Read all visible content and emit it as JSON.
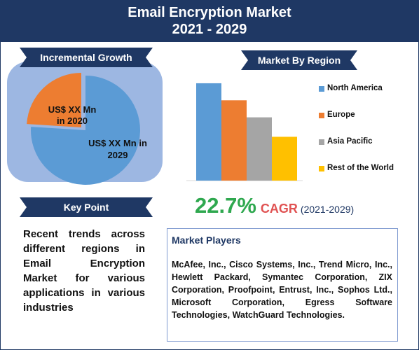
{
  "header": {
    "title_line1": "Email Encryption Market",
    "title_line2": "2021 - 2029"
  },
  "incremental": {
    "ribbon_label": "Incremental Growth",
    "slice_small_label_line1": "US$ XX Mn",
    "slice_small_label_line2": "in 2020",
    "slice_large_label_line1": "US$ XX Mn in",
    "slice_large_label_line2": "2029",
    "colors": {
      "small": "#ed7d31",
      "large": "#5b9bd5"
    }
  },
  "key_point": {
    "ribbon_label": "Key Point",
    "text": "Recent trends across different regions in Email Encryption Market for various applications in various industries"
  },
  "region": {
    "ribbon_label": "Market By Region"
  },
  "chart_data": {
    "type": "bar",
    "categories": [
      "North America",
      "Europe",
      "Asia Pacific",
      "Rest of the World"
    ],
    "values": [
      4,
      3.3,
      2.6,
      1.8
    ],
    "colors": [
      "#5b9bd5",
      "#ed7d31",
      "#a5a5a5",
      "#ffc000"
    ],
    "ylim": [
      0,
      4.2
    ],
    "legend": "right",
    "grid": false,
    "title": "",
    "xlabel": "",
    "ylabel": ""
  },
  "cagr": {
    "value": "22.7%",
    "label": "CAGR",
    "years": "(2021-2029)"
  },
  "market_players": {
    "title": "Market Players",
    "text": "McAfee, Inc., Cisco Systems, Inc., Trend Micro, Inc., Hewlett Packard, Symantec Corporation, ZIX Corporation, Proofpoint, Entrust, Inc., Sophos Ltd., Microsoft Corporation, Egress Software Technologies, WatchGuard Technologies."
  },
  "colors": {
    "navy": "#1f3864",
    "panel_blue": "#9db7e2",
    "cagr_green": "#2fa84f",
    "cagr_red": "#e05252"
  }
}
